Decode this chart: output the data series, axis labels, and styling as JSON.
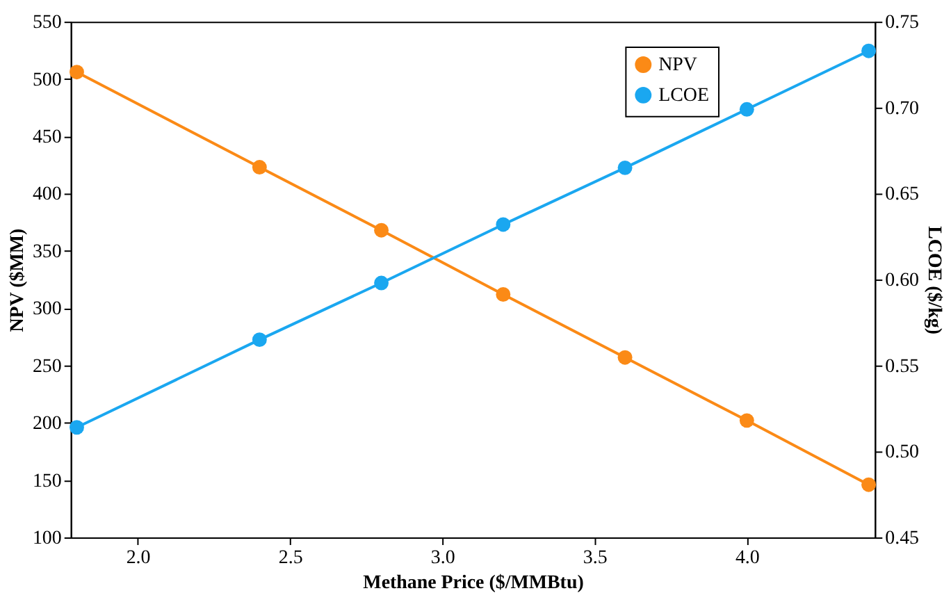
{
  "chart_data": {
    "type": "line",
    "xlabel": "Methane Price ($/MMBtu)",
    "ylabel": "NPV ($MM)",
    "y2label": "LCOE ($/kg)",
    "x": [
      1.8,
      2.4,
      2.8,
      3.2,
      3.6,
      4.0,
      4.4
    ],
    "xlim": [
      1.78,
      4.42
    ],
    "xticks": [
      {
        "value": 2,
        "label": "2.0"
      },
      2.5,
      {
        "value": 3,
        "label": "3.0"
      },
      3.5,
      {
        "value": 4,
        "label": "4.0"
      }
    ],
    "ylim": [
      100,
      550
    ],
    "yticks": [
      100,
      150,
      200,
      250,
      300,
      350,
      400,
      450,
      500,
      550
    ],
    "y2lim": [
      0.45,
      0.75
    ],
    "y2ticks": [
      0.45,
      {
        "value": 0.5,
        "label": "0.50"
      },
      0.55,
      {
        "value": 0.6,
        "label": "0.60"
      },
      0.65,
      {
        "value": 0.7,
        "label": "0.70"
      },
      0.75
    ],
    "series": [
      {
        "name": "NPV",
        "color": "#fb8a16",
        "values": [
          506,
          423,
          368,
          312,
          257,
          202,
          146
        ]
      },
      {
        "name": "LCOE",
        "color": "#1aa7f0",
        "axis": "y2",
        "values": [
          0.514,
          0.565,
          0.598,
          0.632,
          0.665,
          0.699,
          0.733
        ]
      }
    ],
    "marker": "circle",
    "line_style": "solid",
    "legend": "top right",
    "grid": false
  }
}
